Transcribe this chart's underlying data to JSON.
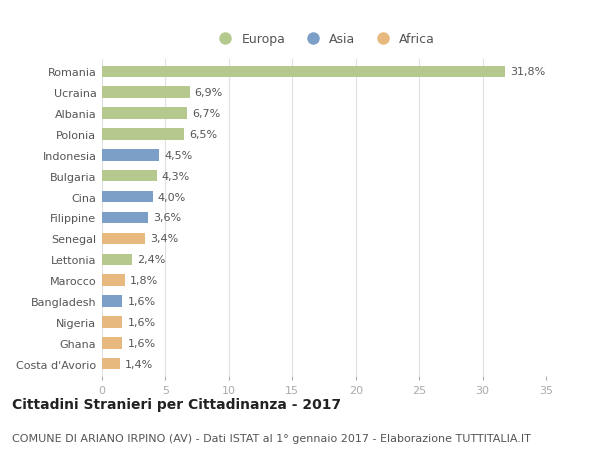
{
  "categories": [
    "Romania",
    "Ucraina",
    "Albania",
    "Polonia",
    "Indonesia",
    "Bulgaria",
    "Cina",
    "Filippine",
    "Senegal",
    "Lettonia",
    "Marocco",
    "Bangladesh",
    "Nigeria",
    "Ghana",
    "Costa d'Avorio"
  ],
  "values": [
    31.8,
    6.9,
    6.7,
    6.5,
    4.5,
    4.3,
    4.0,
    3.6,
    3.4,
    2.4,
    1.8,
    1.6,
    1.6,
    1.6,
    1.4
  ],
  "labels": [
    "31,8%",
    "6,9%",
    "6,7%",
    "6,5%",
    "4,5%",
    "4,3%",
    "4,0%",
    "3,6%",
    "3,4%",
    "2,4%",
    "1,8%",
    "1,6%",
    "1,6%",
    "1,6%",
    "1,4%"
  ],
  "continents": [
    "Europa",
    "Europa",
    "Europa",
    "Europa",
    "Asia",
    "Europa",
    "Asia",
    "Asia",
    "Africa",
    "Europa",
    "Africa",
    "Asia",
    "Africa",
    "Africa",
    "Africa"
  ],
  "colors": {
    "Europa": "#b5c98e",
    "Asia": "#7b9fc7",
    "Africa": "#e8b97e"
  },
  "title": "Cittadini Stranieri per Cittadinanza - 2017",
  "subtitle": "COMUNE DI ARIANO IRPINO (AV) - Dati ISTAT al 1° gennaio 2017 - Elaborazione TUTTITALIA.IT",
  "xlim": [
    0,
    35
  ],
  "xticks": [
    0,
    5,
    10,
    15,
    20,
    25,
    30,
    35
  ],
  "background_color": "#ffffff",
  "grid_color": "#e0e0e0",
  "bar_height": 0.55,
  "title_fontsize": 10,
  "subtitle_fontsize": 8,
  "label_fontsize": 8,
  "tick_fontsize": 8,
  "legend_fontsize": 9
}
